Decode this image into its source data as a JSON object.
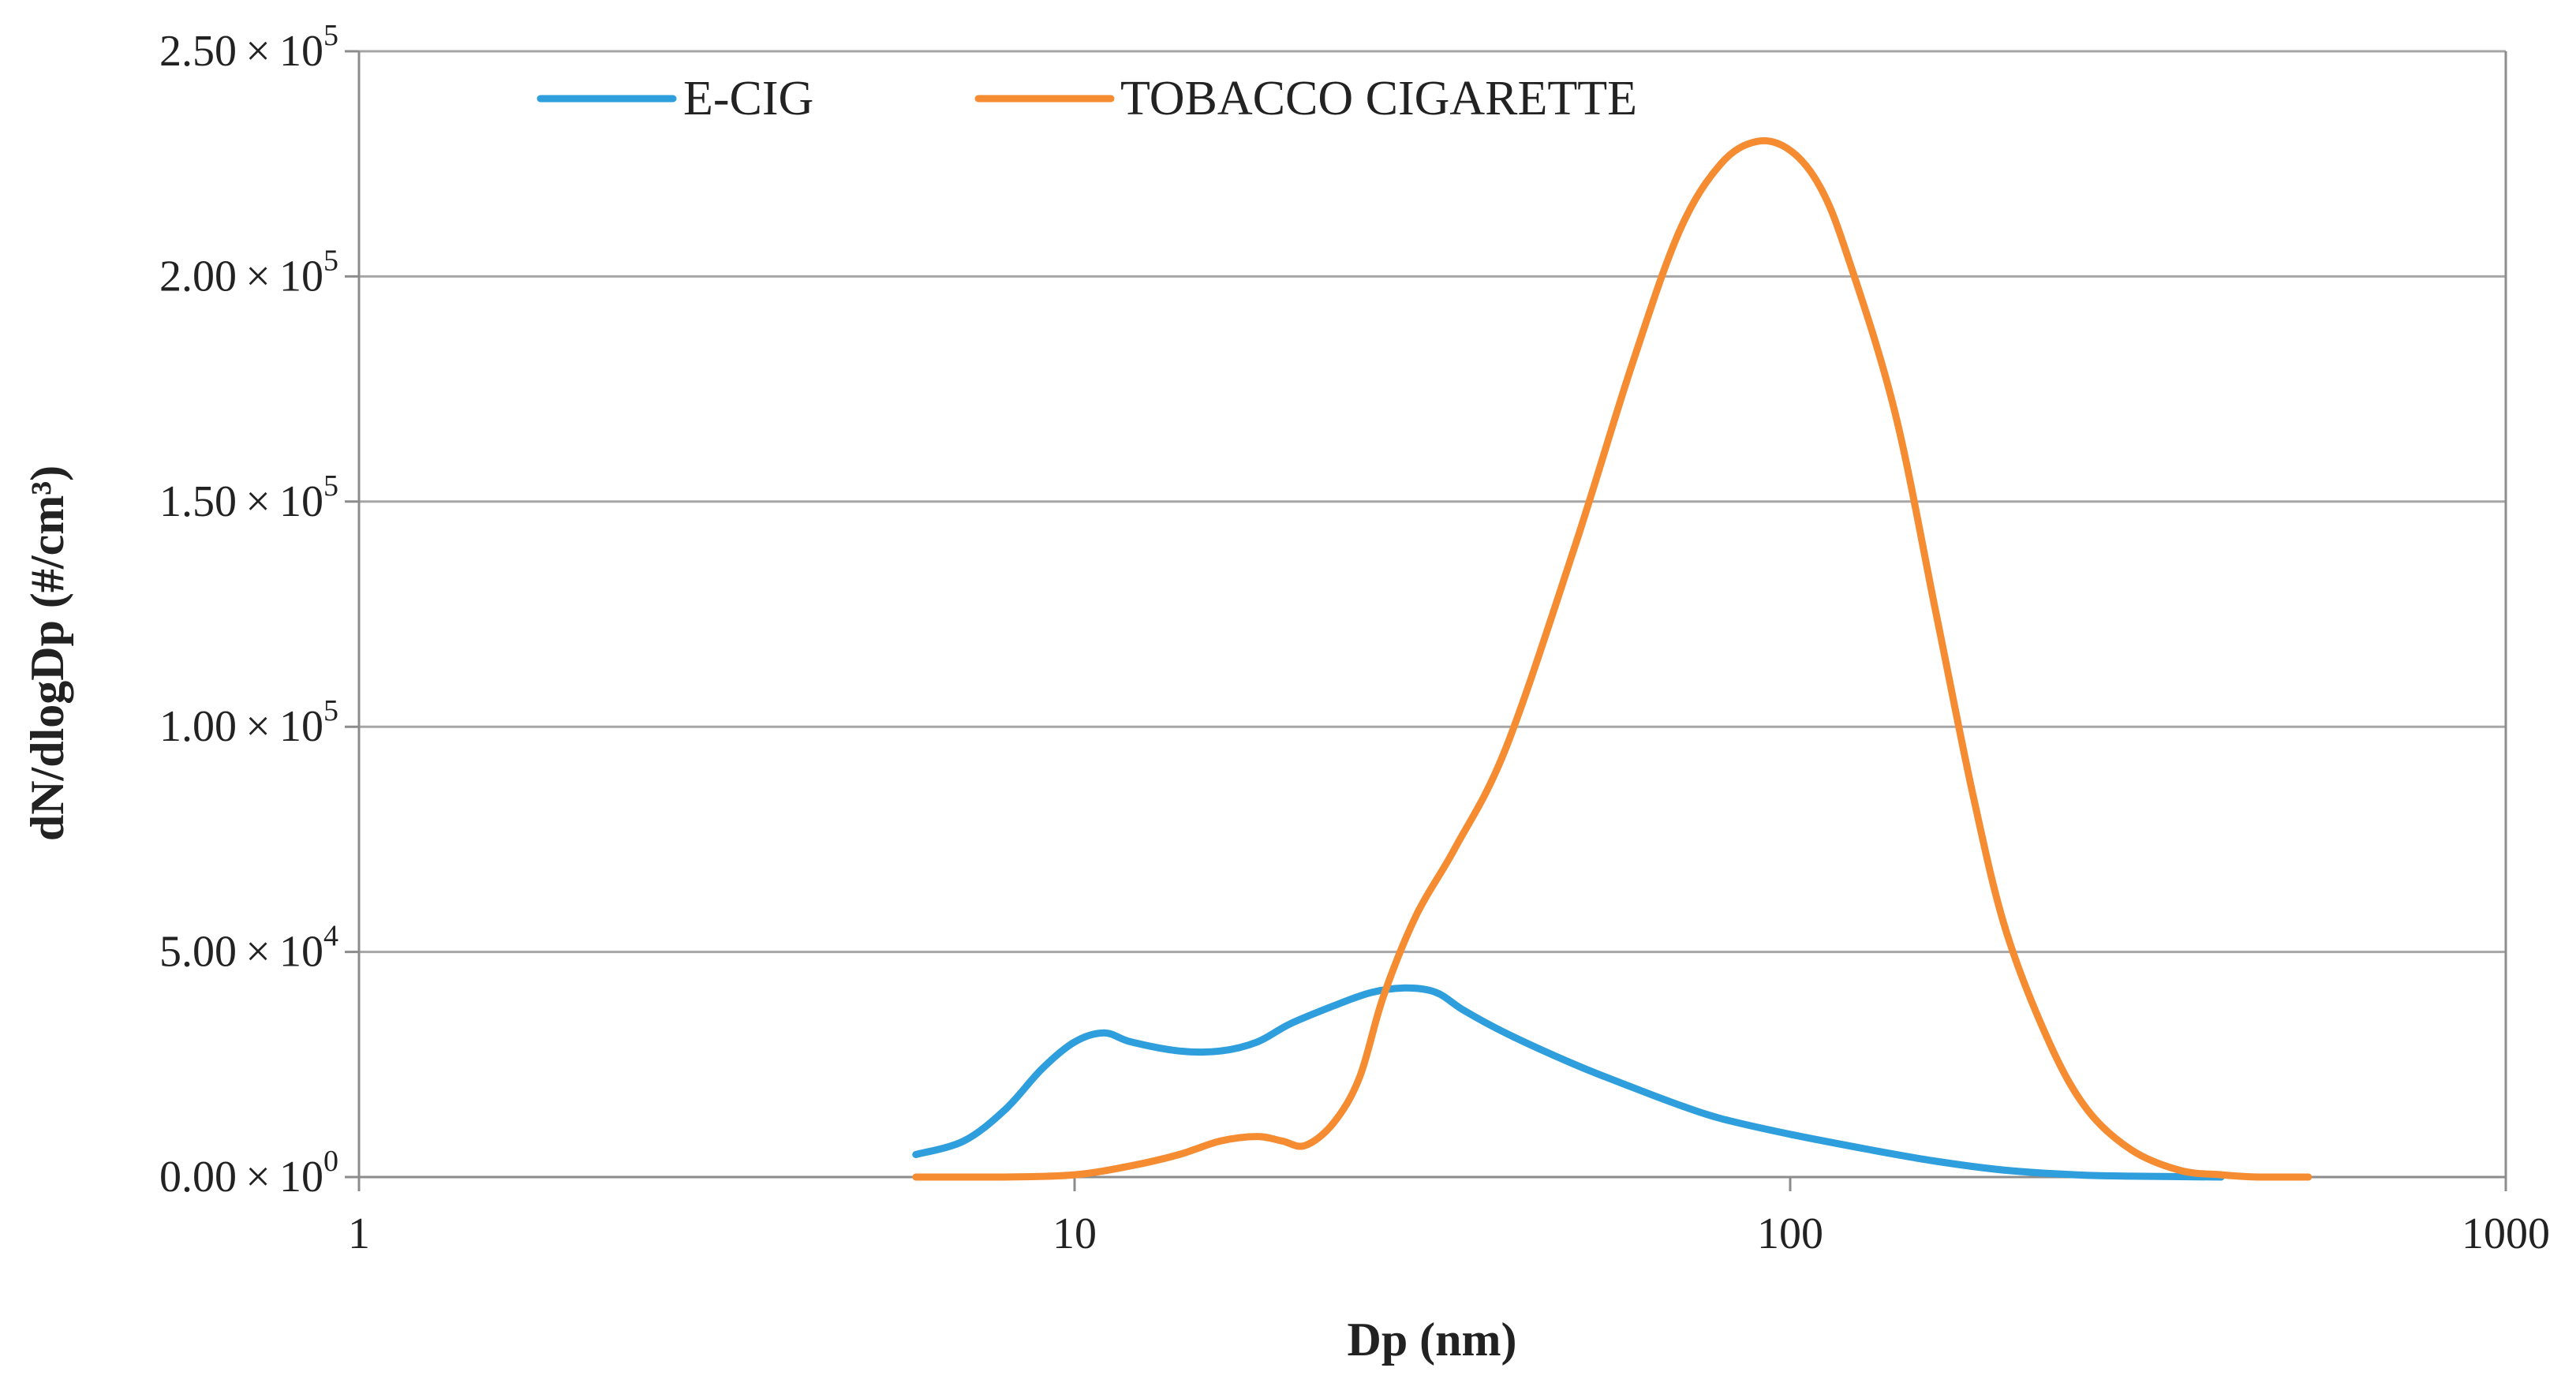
{
  "chart_data": {
    "type": "line",
    "title": "",
    "xlabel": "Dp (nm)",
    "ylabel": "dN/dlogDp (#/cm³)",
    "x_scale": "log",
    "xlim": [
      1,
      1000
    ],
    "ylim": [
      0,
      250000
    ],
    "x_ticks": [
      {
        "value": 1,
        "label": "1"
      },
      {
        "value": 10,
        "label": "10"
      },
      {
        "value": 100,
        "label": "100"
      },
      {
        "value": 1000,
        "label": "1000"
      }
    ],
    "y_ticks": [
      {
        "value": 0,
        "mantissa": "0.00",
        "exponent": "0"
      },
      {
        "value": 50000,
        "mantissa": "5.00",
        "exponent": "4"
      },
      {
        "value": 100000,
        "mantissa": "1.00",
        "exponent": "5"
      },
      {
        "value": 150000,
        "mantissa": "1.50",
        "exponent": "5"
      },
      {
        "value": 200000,
        "mantissa": "2.00",
        "exponent": "5"
      },
      {
        "value": 250000,
        "mantissa": "2.50",
        "exponent": "5"
      }
    ],
    "grid": true,
    "legend_position": "top",
    "series": [
      {
        "name": "E-CIG",
        "color": "#2e9fdc",
        "x": [
          6,
          7,
          8,
          9,
          10,
          11,
          12,
          14,
          16,
          18,
          20,
          23,
          26,
          29,
          32,
          35,
          40,
          50,
          60,
          70,
          80,
          100,
          130,
          160,
          200,
          250,
          300,
          400
        ],
        "y": [
          5000,
          8000,
          15000,
          24000,
          30000,
          32000,
          30000,
          28000,
          28000,
          30000,
          34000,
          38000,
          41000,
          42000,
          41000,
          37000,
          32000,
          25000,
          20000,
          16000,
          13000,
          9500,
          6000,
          3500,
          1500,
          500,
          200,
          0
        ]
      },
      {
        "name": "TOBACCO CIGARETTE",
        "color": "#f58c32",
        "x": [
          6,
          8,
          10,
          12,
          14,
          16,
          18,
          19.5,
          21,
          23,
          25,
          27,
          30,
          34,
          40,
          50,
          60,
          70,
          80,
          90,
          100,
          110,
          120,
          140,
          160,
          180,
          200,
          230,
          260,
          300,
          350,
          400,
          450,
          530
        ],
        "y": [
          0,
          0,
          500,
          2500,
          5000,
          8000,
          9000,
          8000,
          7000,
          12000,
          22000,
          40000,
          58000,
          73000,
          95000,
          140000,
          180000,
          210000,
          225000,
          230000,
          228000,
          220000,
          205000,
          170000,
          125000,
          85000,
          55000,
          30000,
          15000,
          6000,
          1500,
          500,
          0,
          0
        ]
      }
    ]
  }
}
